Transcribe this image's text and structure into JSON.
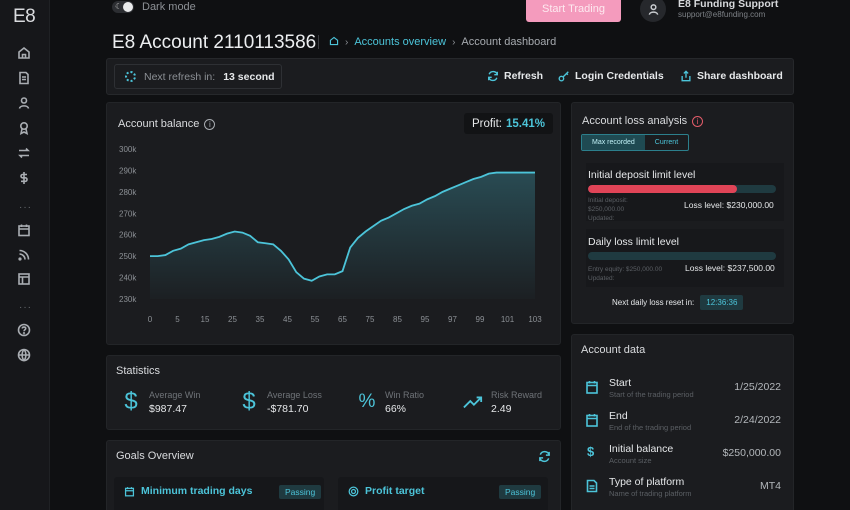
{
  "app": {
    "logo": "E8"
  },
  "theme_toggle": {
    "label": "Dark mode"
  },
  "header": {
    "start_trading": "Start Trading",
    "support_name": "E8 Funding Support",
    "support_email": "support@e8funding.com"
  },
  "page": {
    "title": "E8 Account 2110113586",
    "breadcrumb": {
      "link": "Accounts overview",
      "current": "Account dashboard"
    }
  },
  "toolbar": {
    "refresh_label": "Next refresh in:",
    "refresh_value": "13 second",
    "refresh_button": "Refresh",
    "login_credentials": "Login Credentials",
    "share_dashboard": "Share dashboard"
  },
  "balance": {
    "title": "Account balance",
    "profit_label": "Profit:",
    "profit_value": "15.41%"
  },
  "chart_data": {
    "type": "area",
    "title": "Account balance",
    "x_ticks": [
      0,
      5,
      15,
      25,
      35,
      45,
      55,
      65,
      75,
      85,
      95,
      97,
      99,
      101,
      103
    ],
    "y_ticks": [
      "230k",
      "240k",
      "250k",
      "260k",
      "270k",
      "280k",
      "290k",
      "300k"
    ],
    "ylim": [
      230000,
      300000
    ],
    "x": [
      0,
      1,
      2,
      3,
      4,
      5,
      6,
      7,
      8,
      9,
      10,
      11,
      12,
      13,
      14,
      15,
      16,
      17,
      18,
      19,
      20,
      21,
      22,
      23,
      24,
      25,
      26,
      27,
      28,
      29,
      30,
      31,
      32,
      33,
      34,
      35,
      36,
      37,
      38,
      39,
      40,
      41,
      42,
      43,
      44,
      45,
      46,
      47,
      48,
      49,
      50
    ],
    "y": [
      250000,
      250000,
      250500,
      252500,
      253500,
      255500,
      256500,
      257500,
      258000,
      259000,
      260500,
      261500,
      261000,
      259500,
      256500,
      256000,
      255500,
      252500,
      248500,
      242500,
      239500,
      238500,
      240500,
      241500,
      241500,
      243000,
      254000,
      258500,
      261500,
      264000,
      266500,
      268000,
      270000,
      272000,
      273500,
      274500,
      276500,
      278000,
      280000,
      281500,
      283000,
      284500,
      286000,
      287000,
      288500,
      289000,
      289000,
      289000,
      289000,
      289000,
      289000
    ],
    "line_color": "#4cc4d9",
    "grid": false
  },
  "loss_analysis": {
    "title": "Account loss analysis",
    "tabs": [
      "Max recorded",
      "Current"
    ],
    "initial": {
      "name": "Initial deposit limit level",
      "fill_fraction": 0.79,
      "sub1": "Initial deposit:",
      "sub2": "$250,000.00",
      "sub3": "Updated:",
      "loss_level": "Loss level: $230,000.00"
    },
    "daily": {
      "name": "Daily loss limit level",
      "fill_fraction": 0.0,
      "sub1": "Entry equity: $250,000.00",
      "sub2": "Updated:",
      "loss_level": "Loss level: $237,500.00"
    },
    "next_reset_label": "Next daily loss reset in:",
    "next_reset_value": "12:36:36"
  },
  "statistics": {
    "title": "Statistics",
    "items": [
      {
        "label": "Average Win",
        "value": "$987.47",
        "icon": "dollar-icon"
      },
      {
        "label": "Average Loss",
        "value": "-$781.70",
        "icon": "dollar-icon"
      },
      {
        "label": "Win Ratio",
        "value": "66%",
        "icon": "percent-icon"
      },
      {
        "label": "Risk Reward",
        "value": "2.49",
        "icon": "trend-icon"
      }
    ]
  },
  "goals": {
    "title": "Goals Overview",
    "items": [
      {
        "name": "Minimum trading days",
        "status": "Passing"
      },
      {
        "name": "Profit target",
        "status": "Passing"
      }
    ]
  },
  "account_data": {
    "title": "Account data",
    "rows": [
      {
        "name": "Start",
        "sub": "Start of the trading period",
        "value": "1/25/2022"
      },
      {
        "name": "End",
        "sub": "End of the trading period",
        "value": "2/24/2022"
      },
      {
        "name": "Initial balance",
        "sub": "Account size",
        "value": "$250,000.00"
      },
      {
        "name": "Type of platform",
        "sub": "Name of trading platform",
        "value": "MT4"
      }
    ]
  }
}
